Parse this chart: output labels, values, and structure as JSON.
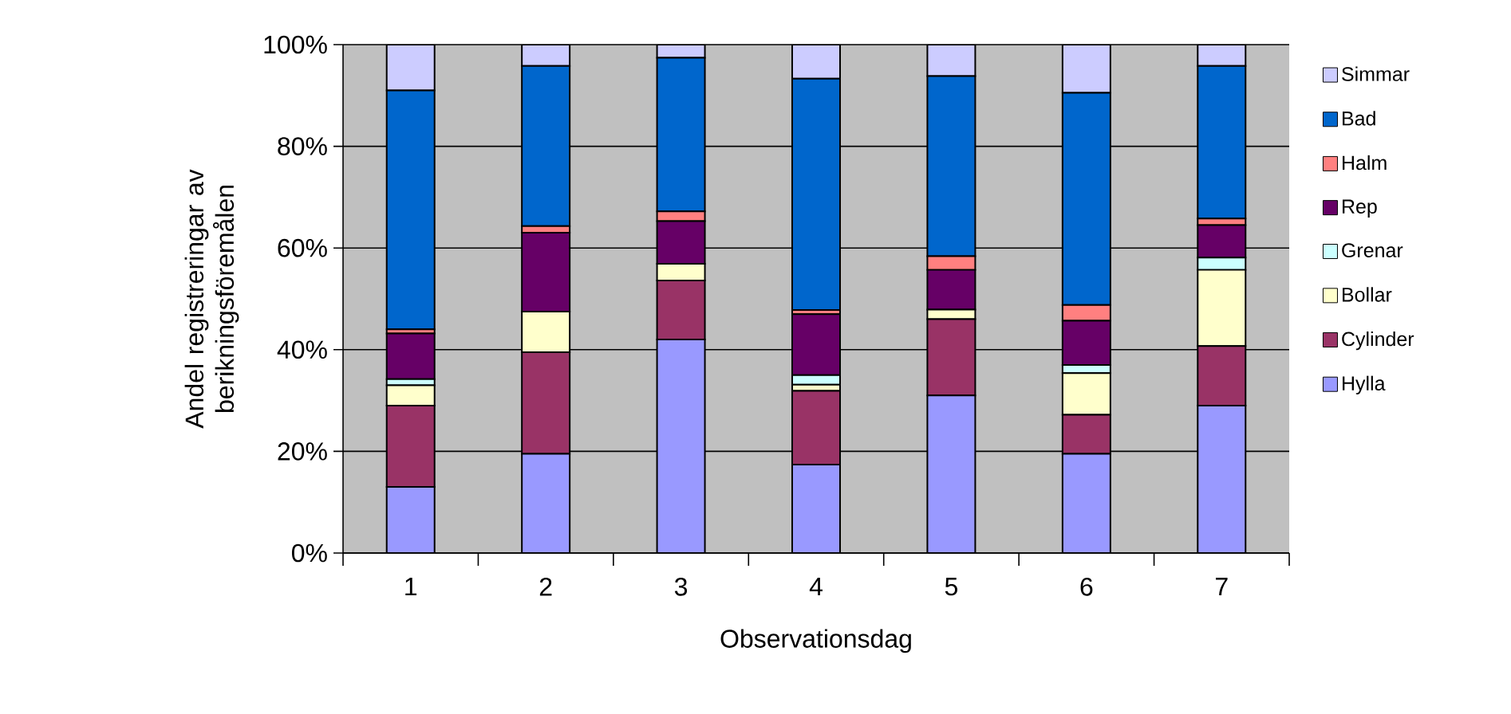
{
  "chart_data": {
    "type": "bar",
    "stacked": true,
    "xlabel": "Observationsdag",
    "ylabel": "Andel registreringar av berikningsföremålen",
    "categories": [
      "1",
      "2",
      "3",
      "4",
      "5",
      "6",
      "7"
    ],
    "series": [
      {
        "name": "Hylla",
        "color": "#9999ff",
        "values": [
          13,
          19.5,
          42,
          17.4,
          31,
          19.5,
          29
        ]
      },
      {
        "name": "Cylinder",
        "color": "#993366",
        "values": [
          16,
          20,
          11.6,
          14.5,
          15,
          7.7,
          11.7
        ]
      },
      {
        "name": "Bollar",
        "color": "#ffffcc",
        "values": [
          4,
          8,
          3.3,
          1.2,
          1.9,
          8.2,
          15
        ]
      },
      {
        "name": "Grenar",
        "color": "#ccffff",
        "values": [
          1.2,
          0,
          0,
          1.9,
          0,
          1.6,
          2.4
        ]
      },
      {
        "name": "Rep",
        "color": "#660066",
        "values": [
          9,
          15.5,
          8.4,
          12,
          7.8,
          8.7,
          6.4
        ]
      },
      {
        "name": "Halm",
        "color": "#ff8080",
        "values": [
          0.8,
          1.3,
          1.9,
          0.8,
          2.7,
          3.1,
          1.3
        ]
      },
      {
        "name": "Bad",
        "color": "#0066cc",
        "values": [
          47,
          31.5,
          30.2,
          45.5,
          35.4,
          41.7,
          30
        ]
      },
      {
        "name": "Simmar",
        "color": "#ccccff",
        "values": [
          9,
          4.2,
          2.6,
          6.7,
          6.2,
          9.5,
          4.2
        ]
      }
    ],
    "ylim": [
      0,
      100
    ],
    "yticks": [
      {
        "value": 0,
        "label": "0%"
      },
      {
        "value": 20,
        "label": "20%"
      },
      {
        "value": 40,
        "label": "40%"
      },
      {
        "value": 60,
        "label": "60%"
      },
      {
        "value": 80,
        "label": "80%"
      },
      {
        "value": 100,
        "label": "100%"
      }
    ],
    "grid": "y",
    "legend": "right"
  }
}
